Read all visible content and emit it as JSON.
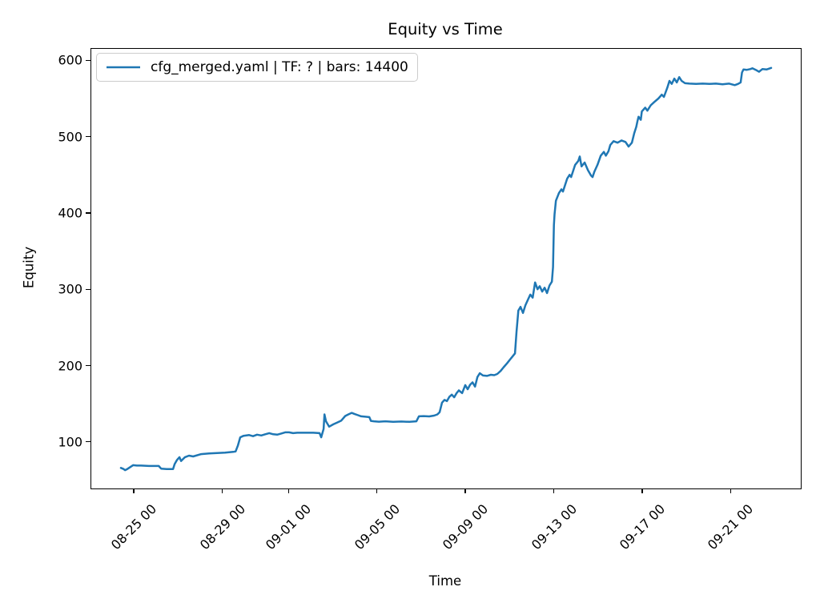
{
  "figure": {
    "title": "Equity vs Time",
    "xlabel": "Time",
    "ylabel": "Equity"
  },
  "legend": {
    "entries": [
      {
        "label": "cfg_merged.yaml | TF: ? | bars: 14400",
        "color": "#1f77b4"
      }
    ],
    "position": "upper left"
  },
  "chart_data": {
    "type": "line",
    "title": "Equity vs Time",
    "xlabel": "Time",
    "ylabel": "Equity",
    "grid": false,
    "legend_position": "upper left",
    "x_axis": {
      "tick_labels": [
        "08-25 00",
        "08-29 00",
        "09-01 00",
        "09-05 00",
        "09-09 00",
        "09-13 00",
        "09-17 00",
        "09-21 00"
      ],
      "tick_day_offsets": [
        1,
        5,
        8,
        12,
        16,
        20,
        24,
        28
      ],
      "day_offset_epoch": "08-24 00:00",
      "range_day_offsets": [
        -0.96,
        31.14
      ]
    },
    "y_axis": {
      "ticks": [
        100,
        200,
        300,
        400,
        500,
        600
      ],
      "range": [
        40,
        616
      ]
    },
    "series": [
      {
        "name": "cfg_merged.yaml | TF: ? | bars: 14400",
        "color": "#1f77b4",
        "line_width": 2.5,
        "points": [
          [
            0.38,
            67
          ],
          [
            0.5,
            65.5
          ],
          [
            0.57,
            64
          ],
          [
            0.67,
            65.5
          ],
          [
            0.93,
            70.5
          ],
          [
            1.1,
            70
          ],
          [
            1.29,
            70
          ],
          [
            1.65,
            69.5
          ],
          [
            2.09,
            69.5
          ],
          [
            2.2,
            66
          ],
          [
            2.45,
            65.5
          ],
          [
            2.74,
            65.5
          ],
          [
            2.81,
            72
          ],
          [
            2.92,
            77.5
          ],
          [
            3.03,
            81
          ],
          [
            3.1,
            76
          ],
          [
            3.28,
            81
          ],
          [
            3.46,
            83
          ],
          [
            3.65,
            82
          ],
          [
            4.01,
            85
          ],
          [
            4.37,
            86
          ],
          [
            4.73,
            86.5
          ],
          [
            5.09,
            87
          ],
          [
            5.46,
            88
          ],
          [
            5.57,
            88.5
          ],
          [
            5.67,
            96
          ],
          [
            5.78,
            107
          ],
          [
            5.93,
            109
          ],
          [
            6.18,
            110
          ],
          [
            6.36,
            108.5
          ],
          [
            6.54,
            110.5
          ],
          [
            6.73,
            109.5
          ],
          [
            6.91,
            111
          ],
          [
            7.09,
            112.5
          ],
          [
            7.27,
            111
          ],
          [
            7.45,
            110.5
          ],
          [
            7.63,
            112
          ],
          [
            7.81,
            113.5
          ],
          [
            7.99,
            113.5
          ],
          [
            8.17,
            112.5
          ],
          [
            8.36,
            113
          ],
          [
            8.72,
            113
          ],
          [
            9.08,
            113
          ],
          [
            9.37,
            112.5
          ],
          [
            9.44,
            107
          ],
          [
            9.55,
            118
          ],
          [
            9.59,
            137
          ],
          [
            9.66,
            128
          ],
          [
            9.8,
            121
          ],
          [
            9.99,
            124
          ],
          [
            10.17,
            126.5
          ],
          [
            10.35,
            129
          ],
          [
            10.53,
            135
          ],
          [
            10.67,
            137
          ],
          [
            10.82,
            139
          ],
          [
            10.96,
            137.5
          ],
          [
            11.11,
            136
          ],
          [
            11.25,
            134.5
          ],
          [
            11.44,
            134
          ],
          [
            11.62,
            133.5
          ],
          [
            11.69,
            128.5
          ],
          [
            11.83,
            128
          ],
          [
            12.05,
            127.5
          ],
          [
            12.34,
            128
          ],
          [
            12.7,
            127.3
          ],
          [
            13.07,
            127.7
          ],
          [
            13.43,
            127.3
          ],
          [
            13.75,
            128
          ],
          [
            13.86,
            134.5
          ],
          [
            14.08,
            134.8
          ],
          [
            14.33,
            134.4
          ],
          [
            14.55,
            135.5
          ],
          [
            14.7,
            137
          ],
          [
            14.8,
            140
          ],
          [
            14.91,
            152.5
          ],
          [
            15.02,
            156
          ],
          [
            15.13,
            154.5
          ],
          [
            15.24,
            160
          ],
          [
            15.35,
            163
          ],
          [
            15.46,
            159.5
          ],
          [
            15.57,
            165
          ],
          [
            15.67,
            168.5
          ],
          [
            15.82,
            165
          ],
          [
            15.96,
            175.5
          ],
          [
            16.07,
            170
          ],
          [
            16.18,
            176
          ],
          [
            16.29,
            179
          ],
          [
            16.4,
            173.5
          ],
          [
            16.51,
            186
          ],
          [
            16.62,
            191
          ],
          [
            16.76,
            188
          ],
          [
            16.94,
            187.5
          ],
          [
            17.12,
            189
          ],
          [
            17.27,
            188.5
          ],
          [
            17.41,
            190
          ],
          [
            17.56,
            194
          ],
          [
            17.7,
            199
          ],
          [
            17.85,
            204
          ],
          [
            17.99,
            209
          ],
          [
            18.1,
            213
          ],
          [
            18.21,
            217
          ],
          [
            18.28,
            245
          ],
          [
            18.36,
            273
          ],
          [
            18.46,
            278
          ],
          [
            18.57,
            270
          ],
          [
            18.68,
            280
          ],
          [
            18.79,
            287
          ],
          [
            18.9,
            294
          ],
          [
            19.01,
            290
          ],
          [
            19.12,
            310
          ],
          [
            19.23,
            301
          ],
          [
            19.33,
            305
          ],
          [
            19.44,
            298
          ],
          [
            19.55,
            303
          ],
          [
            19.66,
            296
          ],
          [
            19.77,
            306
          ],
          [
            19.88,
            311
          ],
          [
            19.93,
            330
          ],
          [
            19.97,
            385
          ],
          [
            20.0,
            399
          ],
          [
            20.06,
            417
          ],
          [
            20.2,
            427
          ],
          [
            20.31,
            432
          ],
          [
            20.38,
            429
          ],
          [
            20.57,
            446
          ],
          [
            20.68,
            451
          ],
          [
            20.75,
            448
          ],
          [
            20.93,
            464
          ],
          [
            21.07,
            469
          ],
          [
            21.14,
            475
          ],
          [
            21.22,
            462
          ],
          [
            21.36,
            467
          ],
          [
            21.51,
            457
          ],
          [
            21.65,
            450
          ],
          [
            21.72,
            448
          ],
          [
            21.8,
            455
          ],
          [
            21.94,
            464
          ],
          [
            22.09,
            476
          ],
          [
            22.23,
            481
          ],
          [
            22.32,
            476
          ],
          [
            22.44,
            482
          ],
          [
            22.52,
            490
          ],
          [
            22.67,
            495
          ],
          [
            22.85,
            493
          ],
          [
            23.03,
            496
          ],
          [
            23.21,
            494
          ],
          [
            23.35,
            488
          ],
          [
            23.5,
            493
          ],
          [
            23.6,
            505
          ],
          [
            23.7,
            514
          ],
          [
            23.75,
            521
          ],
          [
            23.8,
            527
          ],
          [
            23.9,
            523
          ],
          [
            23.95,
            534
          ],
          [
            24.1,
            539
          ],
          [
            24.2,
            535
          ],
          [
            24.35,
            542
          ],
          [
            24.5,
            546
          ],
          [
            24.7,
            551
          ],
          [
            24.85,
            556
          ],
          [
            24.95,
            553
          ],
          [
            25.1,
            565
          ],
          [
            25.2,
            574
          ],
          [
            25.3,
            570
          ],
          [
            25.42,
            577
          ],
          [
            25.53,
            572
          ],
          [
            25.64,
            579
          ],
          [
            25.75,
            574
          ],
          [
            25.9,
            571
          ],
          [
            26.1,
            570.5
          ],
          [
            26.4,
            570
          ],
          [
            26.7,
            570.5
          ],
          [
            27.0,
            570
          ],
          [
            27.3,
            570.5
          ],
          [
            27.6,
            569.5
          ],
          [
            27.9,
            570.5
          ],
          [
            28.15,
            568.5
          ],
          [
            28.3,
            570
          ],
          [
            28.42,
            572
          ],
          [
            28.48,
            585
          ],
          [
            28.55,
            589
          ],
          [
            28.7,
            588.5
          ],
          [
            28.85,
            589.5
          ],
          [
            28.95,
            590.5
          ],
          [
            29.1,
            588.5
          ],
          [
            29.25,
            586
          ],
          [
            29.4,
            589.5
          ],
          [
            29.6,
            589
          ],
          [
            29.8,
            591
          ]
        ]
      }
    ]
  }
}
